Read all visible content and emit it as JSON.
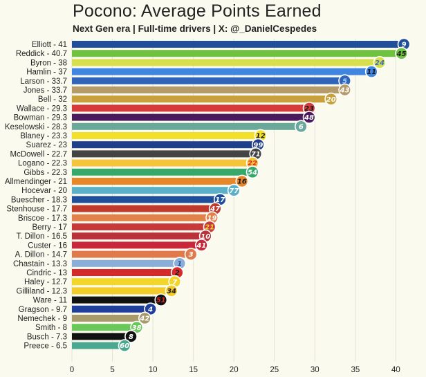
{
  "title": "Pocono: Average Points Earned",
  "subtitle": "Next Gen era | Full-time drivers | X: @_DanielCespedes",
  "chart_data": {
    "type": "bar",
    "orientation": "horizontal",
    "xlim": [
      0,
      42
    ],
    "xticks": [
      0,
      5,
      10,
      15,
      20,
      25,
      30,
      35,
      40
    ],
    "grid": true,
    "bars": [
      {
        "label": "Elliott - 41",
        "value": 41,
        "car": "9",
        "color": "#1f4e9a",
        "badge": "#1f4e9a",
        "numcolor": "#ffffff"
      },
      {
        "label": "Reddick - 40.7",
        "value": 40.7,
        "car": "45",
        "color": "#6fc23f",
        "badge": "#6fc23f",
        "numcolor": "#1a1a1a"
      },
      {
        "label": "Byron - 38",
        "value": 38,
        "car": "24",
        "color": "#d7e04c",
        "badge": "#d7e04c",
        "numcolor": "#3a6fc0"
      },
      {
        "label": "Hamlin - 37",
        "value": 37,
        "car": "11",
        "color": "#3f86e0",
        "badge": "#3f86e0",
        "numcolor": "#1a1a1a"
      },
      {
        "label": "Larson - 33.7",
        "value": 33.7,
        "car": "5",
        "color": "#2f64b8",
        "badge": "#2f64b8",
        "numcolor": "#9ad0ff"
      },
      {
        "label": "Jones - 33.7",
        "value": 33.7,
        "car": "43",
        "color": "#b59a6a",
        "badge": "#b59a6a",
        "numcolor": "#ffffff"
      },
      {
        "label": "Bell - 32",
        "value": 32,
        "car": "20",
        "color": "#c8a03c",
        "badge": "#c8a03c",
        "numcolor": "#ffffff"
      },
      {
        "label": "Wallace - 29.3",
        "value": 29.3,
        "car": "23",
        "color": "#d63a3a",
        "badge": "#d63a3a",
        "numcolor": "#1a1a1a"
      },
      {
        "label": "Bowman - 29.3",
        "value": 29.3,
        "car": "48",
        "color": "#4a1a5c",
        "badge": "#4a1a5c",
        "numcolor": "#ffffff"
      },
      {
        "label": "Keselowski - 28.3",
        "value": 28.3,
        "car": "6",
        "color": "#6aa89a",
        "badge": "#6aa89a",
        "numcolor": "#ffffff"
      },
      {
        "label": "Blaney - 23.3",
        "value": 23.3,
        "car": "12",
        "color": "#f2e02a",
        "badge": "#f2e02a",
        "numcolor": "#1a1a1a"
      },
      {
        "label": "Suarez - 23",
        "value": 23,
        "car": "99",
        "color": "#1f3f8a",
        "badge": "#1f3f8a",
        "numcolor": "#ffffff"
      },
      {
        "label": "McDowell - 22.7",
        "value": 22.7,
        "car": "71",
        "color": "#444444",
        "badge": "#444444",
        "numcolor": "#ffffff"
      },
      {
        "label": "Logano - 22.3",
        "value": 22.3,
        "car": "22",
        "color": "#f4c53a",
        "badge": "#f4c53a",
        "numcolor": "#d62a2a"
      },
      {
        "label": "Gibbs - 22.3",
        "value": 22.3,
        "car": "54",
        "color": "#36a86a",
        "badge": "#36a86a",
        "numcolor": "#ffffff"
      },
      {
        "label": "Allmendinger - 21",
        "value": 21,
        "car": "16",
        "color": "#e8872a",
        "badge": "#e8872a",
        "numcolor": "#1a1a1a"
      },
      {
        "label": "Hocevar - 20",
        "value": 20,
        "car": "77",
        "color": "#5ab0c8",
        "badge": "#5ab0c8",
        "numcolor": "#ffffff"
      },
      {
        "label": "Buescher - 18.3",
        "value": 18.3,
        "car": "17",
        "color": "#1f4e9a",
        "badge": "#1f4e9a",
        "numcolor": "#ffffff"
      },
      {
        "label": "Stenhouse - 17.7",
        "value": 17.7,
        "car": "47",
        "color": "#c0392b",
        "badge": "#c0392b",
        "numcolor": "#ffffff"
      },
      {
        "label": "Briscoe - 17.3",
        "value": 17.3,
        "car": "19",
        "color": "#e0824a",
        "badge": "#e0824a",
        "numcolor": "#ffffff"
      },
      {
        "label": "Berry - 17",
        "value": 17,
        "car": "21",
        "color": "#c83a3a",
        "badge": "#c83a3a",
        "numcolor": "#f2d23a"
      },
      {
        "label": "T. Dillon - 16.5",
        "value": 16.5,
        "car": "10",
        "color": "#b8333a",
        "badge": "#b8333a",
        "numcolor": "#ffffff"
      },
      {
        "label": "Custer - 16",
        "value": 16,
        "car": "41",
        "color": "#c8283a",
        "badge": "#c8283a",
        "numcolor": "#ffffff"
      },
      {
        "label": "A. Dillon - 14.7",
        "value": 14.7,
        "car": "3",
        "color": "#e07a4a",
        "badge": "#e07a4a",
        "numcolor": "#ffffff"
      },
      {
        "label": "Chastain - 13.3",
        "value": 13.3,
        "car": "1",
        "color": "#8aaed8",
        "badge": "#8aaed8",
        "numcolor": "#1f4e9a"
      },
      {
        "label": "Cindric - 13",
        "value": 13,
        "car": "2",
        "color": "#d62a2a",
        "badge": "#d62a2a",
        "numcolor": "#1a1a1a"
      },
      {
        "label": "Haley - 12.7",
        "value": 12.7,
        "car": "7",
        "color": "#f2d62a",
        "badge": "#f2d62a",
        "numcolor": "#ffffff"
      },
      {
        "label": "Gilliland - 12.3",
        "value": 12.3,
        "car": "34",
        "color": "#f4cc2a",
        "badge": "#f4cc2a",
        "numcolor": "#1a1a1a"
      },
      {
        "label": "Ware - 11",
        "value": 11,
        "car": "51",
        "color": "#111111",
        "badge": "#111111",
        "numcolor": "#d62a2a"
      },
      {
        "label": "Gragson - 9.7",
        "value": 9.7,
        "car": "4",
        "color": "#1f3f9a",
        "badge": "#1f3f9a",
        "numcolor": "#ffffff"
      },
      {
        "label": "Nemechek - 9",
        "value": 9,
        "car": "42",
        "color": "#a89a6a",
        "badge": "#a89a6a",
        "numcolor": "#ffffff"
      },
      {
        "label": "Smith - 8",
        "value": 8,
        "car": "38",
        "color": "#6ac85a",
        "badge": "#6ac85a",
        "numcolor": "#ffffff"
      },
      {
        "label": "Busch - 7.3",
        "value": 7.3,
        "car": "8",
        "color": "#111111",
        "badge": "#111111",
        "numcolor": "#ffffff"
      },
      {
        "label": "Preece - 6.5",
        "value": 6.5,
        "car": "60",
        "color": "#4aa890",
        "badge": "#4aa890",
        "numcolor": "#ffffff"
      }
    ]
  }
}
